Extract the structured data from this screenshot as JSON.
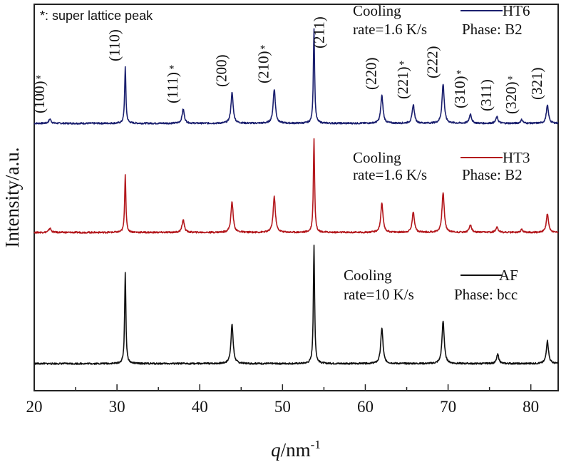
{
  "chart_data": {
    "type": "line",
    "title": "",
    "note": "*: super lattice peak",
    "xlabel_var": "q",
    "xlabel_unit": "/nm",
    "xlabel_exp": "-1",
    "ylabel": "Intensity/a.u.",
    "xlim": [
      20,
      83.3
    ],
    "ylim": [
      0,
      542
    ],
    "xticks": [
      20,
      30,
      40,
      50,
      60,
      70,
      80
    ],
    "xtick_labels": [
      "20",
      "30",
      "40",
      "50",
      "60",
      "70",
      "80"
    ],
    "grid": false,
    "peak_labels": [
      {
        "q": 21.9,
        "label": "(100)",
        "superlattice": true
      },
      {
        "q": 31.0,
        "label": "(110)",
        "superlattice": false
      },
      {
        "q": 38.0,
        "label": "(111)",
        "superlattice": true
      },
      {
        "q": 43.9,
        "label": "(200)",
        "superlattice": false
      },
      {
        "q": 49.0,
        "label": "(210)",
        "superlattice": true
      },
      {
        "q": 53.8,
        "label": "(211)",
        "superlattice": false
      },
      {
        "q": 62.0,
        "label": "(220)",
        "superlattice": false
      },
      {
        "q": 65.8,
        "label": "(221)",
        "superlattice": true
      },
      {
        "q": 69.4,
        "label": "(222)",
        "superlattice": false
      },
      {
        "q": 72.7,
        "label": "(310)",
        "superlattice": true
      },
      {
        "q": 75.9,
        "label": "(311)",
        "superlattice": false
      },
      {
        "q": 78.9,
        "label": "(320)",
        "superlattice": true
      },
      {
        "q": 82.0,
        "label": "(321)",
        "superlattice": false
      }
    ],
    "asterisk": "*",
    "series": [
      {
        "name": "HT6",
        "color": "#1a1f6e",
        "baseline": 375,
        "annotation": [
          "Cooling",
          "rate=1.6 K/s"
        ],
        "phase": "Phase: B2",
        "peaks": [
          {
            "q": 21.9,
            "height": 6
          },
          {
            "q": 31.0,
            "height": 79
          },
          {
            "q": 38.0,
            "height": 20
          },
          {
            "q": 43.9,
            "height": 43
          },
          {
            "q": 49.0,
            "height": 48
          },
          {
            "q": 53.8,
            "height": 133
          },
          {
            "q": 62.0,
            "height": 39
          },
          {
            "q": 65.8,
            "height": 26
          },
          {
            "q": 69.4,
            "height": 55
          },
          {
            "q": 72.7,
            "height": 13
          },
          {
            "q": 75.9,
            "height": 9
          },
          {
            "q": 78.9,
            "height": 5
          },
          {
            "q": 82.0,
            "height": 25
          }
        ]
      },
      {
        "name": "HT3",
        "color": "#b3171c",
        "baseline": 222,
        "annotation": [
          "Cooling",
          "rate=1.6 K/s"
        ],
        "phase": "Phase: B2",
        "peaks": [
          {
            "q": 21.9,
            "height": 6
          },
          {
            "q": 31.0,
            "height": 81
          },
          {
            "q": 38.0,
            "height": 18
          },
          {
            "q": 43.9,
            "height": 43
          },
          {
            "q": 49.0,
            "height": 50
          },
          {
            "q": 53.8,
            "height": 131
          },
          {
            "q": 62.0,
            "height": 41
          },
          {
            "q": 65.8,
            "height": 29
          },
          {
            "q": 69.4,
            "height": 56
          },
          {
            "q": 72.7,
            "height": 11
          },
          {
            "q": 75.9,
            "height": 8
          },
          {
            "q": 78.9,
            "height": 4
          },
          {
            "q": 82.0,
            "height": 26
          }
        ]
      },
      {
        "name": "AF",
        "color": "#111111",
        "baseline": 38,
        "annotation": [
          "Cooling",
          "rate=10 K/s"
        ],
        "phase": "Phase: bcc",
        "peaks": [
          {
            "q": 31.0,
            "height": 128
          },
          {
            "q": 43.9,
            "height": 55
          },
          {
            "q": 53.8,
            "height": 165
          },
          {
            "q": 62.0,
            "height": 50
          },
          {
            "q": 69.4,
            "height": 60
          },
          {
            "q": 76.0,
            "height": 13
          },
          {
            "q": 82.0,
            "height": 32
          }
        ]
      }
    ]
  }
}
